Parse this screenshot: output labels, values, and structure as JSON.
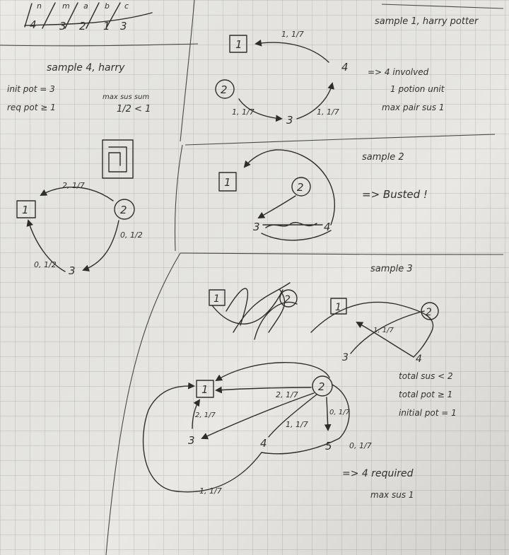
{
  "photo": {
    "paper_color": "#e9e8e4",
    "grid_color": "#b9b8b2",
    "ink_color": "#2f2d2a"
  },
  "top_strip": {
    "letters": [
      "n",
      "m",
      "a",
      "b",
      "c"
    ],
    "digits": [
      "4",
      "3",
      "2",
      "1",
      "3"
    ]
  },
  "sample1": {
    "title": "sample 1, harry potter",
    "nodes": {
      "a": "1",
      "b": "2",
      "c": "3",
      "d": "4"
    },
    "edges": {
      "top": "1, 1/7",
      "left": "1, 1/7",
      "right": "1, 1/7"
    },
    "notes": [
      "=> 4 involved",
      "1 potion unit",
      "max pair sus 1"
    ]
  },
  "sample4": {
    "title": "sample 4, harry",
    "init": "init pot = 3",
    "req": "req pot ≥ 1",
    "maxsus_label": "max sus sum",
    "maxsus_value": "1/2 < 1",
    "nodes": {
      "a": "1",
      "b": "2",
      "c": "3"
    },
    "edges": {
      "top": "2, 1/7",
      "right": "0, 1/2",
      "left": "0, 1/2"
    }
  },
  "sample2": {
    "title": "sample 2",
    "nodes": {
      "a": "1",
      "b": "2",
      "c": "3",
      "d": "4"
    },
    "result": "=> Busted !"
  },
  "sample3": {
    "title": "sample 3",
    "mini_left_label": "1",
    "mini_left_node2": "2",
    "mini_right": {
      "a": "1",
      "b": "2",
      "c": "3",
      "d": "4",
      "edge": "1, 1/7"
    },
    "constraints": [
      "total sus < 2",
      "total pot ≥ 1",
      "initial pot = 1"
    ],
    "nodes": {
      "a": "1",
      "b": "2",
      "c": "3",
      "d": "4",
      "e": "5"
    },
    "edges": {
      "b_to_a": "2, 1/7",
      "c_to_a": "2, 1/7",
      "d_to_b": "1, 1/7",
      "b_to_e": "0, 1/7",
      "e_arc": "0, 1/7",
      "bottom": "1, 1/7"
    },
    "result_1": "=> 4 required",
    "result_2": "max sus 1"
  }
}
